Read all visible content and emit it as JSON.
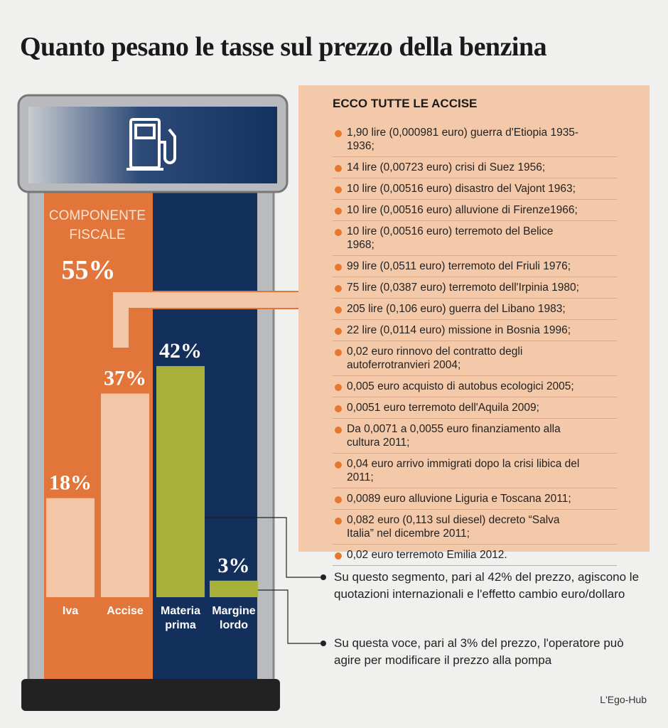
{
  "chart_data": {
    "type": "bar",
    "title": "Quanto pesano le tasse sul prezzo della benzina",
    "group_label": "COMPONENTE FISCALE",
    "group_total": {
      "value": 55,
      "label": "55%"
    },
    "categories": [
      "Iva",
      "Accise",
      "Materia prima",
      "Margine lordo"
    ],
    "series": [
      {
        "values": [
          18,
          37,
          42,
          3
        ],
        "value_labels": [
          "18%",
          "37%",
          "42%",
          "3%"
        ],
        "colors": [
          "#f2c6a6",
          "#f2c6a6",
          "#a8b23a",
          "#a8b23a"
        ]
      }
    ]
  },
  "accise": {
    "title": "ECCO TUTTE LE ACCISE",
    "items": [
      "1,90 lire (0,000981 euro) guerra d'Etiopia 1935-1936;",
      "14 lire (0,00723 euro) crisi di Suez 1956;",
      "10 lire (0,00516 euro) disastro del Vajont 1963;",
      "10 lire (0,00516 euro) alluvione di Firenze1966;",
      "10 lire (0,00516 euro) terremoto del Belice 1968;",
      "99 lire (0,0511 euro) terremoto del Friuli 1976;",
      "75 lire (0,0387 euro) terremoto dell'Irpinia 1980;",
      "205 lire (0,106 euro) guerra del Libano 1983;",
      "22 lire (0,0114 euro) missione in Bosnia 1996;",
      "0,02 euro rinnovo del contratto degli autoferrotranvieri 2004;",
      "0,005 euro acquisto di autobus ecologici 2005;",
      "0,0051 euro terremoto dell'Aquila 2009;",
      "Da 0,0071 a 0,0055 euro finanziamento alla cultura 2011;",
      "0,04 euro arrivo immigrati dopo la crisi libica del 2011;",
      "0,0089 euro alluvione Liguria e Toscana 2011;",
      "0,082 euro (0,113 sul diesel) decreto “Salva Italia” nel dicembre 2011;",
      "0,02 euro terremoto Emilia 2012."
    ]
  },
  "annotations": [
    "Su questo segmento, pari al 42% del prezzo, agiscono le quotazioni internazionali e l'effetto cambio euro/dollaro",
    "Su questa voce, pari al 3% del prezzo, l'operatore può agire per  modificare il prezzo alla pompa"
  ],
  "source": "L'Ego-Hub"
}
